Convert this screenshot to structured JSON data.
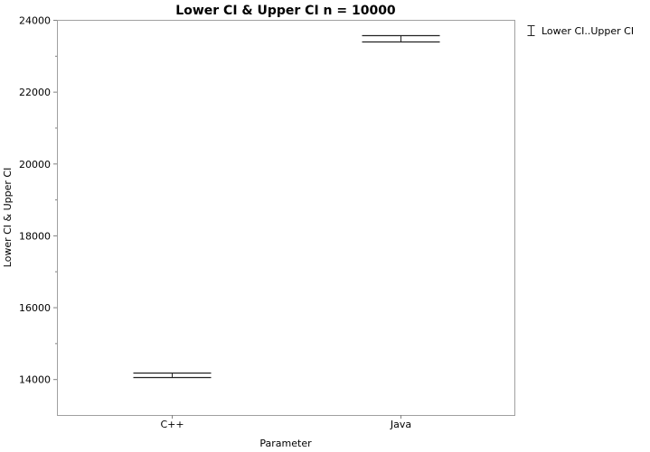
{
  "chart_data": {
    "type": "interval",
    "title": "Lower CI & Upper CI n = 10000",
    "xlabel": "Parameter",
    "ylabel": "Lower CI & Upper CI",
    "categories": [
      "C++",
      "Java"
    ],
    "series": [
      {
        "name": "Lower CI..Upper CI",
        "lower": [
          14050,
          23400
        ],
        "upper": [
          14180,
          23570
        ]
      }
    ],
    "ylim": [
      13000,
      24000
    ],
    "yticks": [
      14000,
      16000,
      18000,
      20000,
      22000,
      24000
    ],
    "yticklabels": [
      "14000",
      "16000",
      "18000",
      "20000",
      "22000",
      "24000"
    ],
    "grid": false,
    "legend_position": "right"
  }
}
